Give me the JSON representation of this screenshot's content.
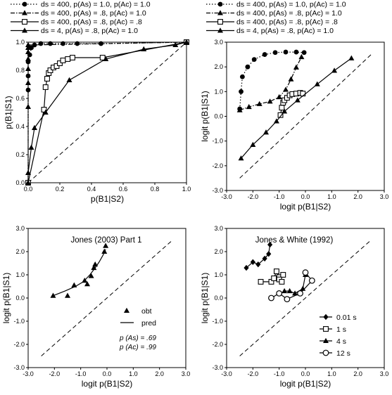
{
  "chart_data": [
    {
      "id": "p1",
      "type": "line",
      "xlabel": "p(B1|S2)",
      "ylabel": "p(B1|S1)",
      "xlim": [
        0,
        1
      ],
      "ylim": [
        0,
        1
      ],
      "xticks": [
        "0.0",
        "0.2",
        "0.4",
        "0.6",
        "0.8",
        "1.0"
      ],
      "yticks": [
        "0.0",
        "0.2",
        "0.4",
        "0.6",
        "0.8",
        "1.0"
      ],
      "legend": "top",
      "diagonal": true,
      "series": [
        {
          "name": "ds = 400, p(As) = 1.0, p(Ac) = 1.0",
          "marker": "circle",
          "line": "dotted",
          "x": [
            0.0,
            0.0,
            0.0,
            0.0,
            0.01,
            0.02,
            0.04,
            0.08,
            0.14,
            0.22,
            0.31,
            0.46,
            1.0
          ],
          "y": [
            0.0,
            0.66,
            0.76,
            0.86,
            0.91,
            0.96,
            0.98,
            0.99,
            0.99,
            0.99,
            0.99,
            0.99,
            1.0
          ]
        },
        {
          "name": "ds = 400, p(As) = .8, p(Ac) = 1.0",
          "marker": "triangle",
          "line": "dashdot",
          "x": [
            0.0,
            0.0,
            0.0,
            0.0,
            0.0,
            0.0,
            0.0,
            0.0,
            1.0
          ],
          "y": [
            0.0,
            0.54,
            0.71,
            0.81,
            0.88,
            0.93,
            0.96,
            0.98,
            1.0
          ]
        },
        {
          "name": "ds = 400, p(As) = .8, p(Ac) = .8",
          "marker": "square",
          "line": "solid",
          "x": [
            0.0,
            0.1,
            0.11,
            0.12,
            0.13,
            0.14,
            0.16,
            0.18,
            0.2,
            0.22,
            0.25,
            0.28,
            0.47,
            1.0
          ],
          "y": [
            0.0,
            0.52,
            0.68,
            0.74,
            0.78,
            0.8,
            0.82,
            0.83,
            0.85,
            0.87,
            0.88,
            0.89,
            0.89,
            1.0
          ]
        },
        {
          "name": "ds = 4, p(As) = .8, p(Ac) = 1.0",
          "marker": "triangle",
          "line": "solid",
          "x": [
            0.0,
            0.0,
            0.02,
            0.04,
            0.11,
            0.26,
            0.49,
            0.73,
            0.93,
            1.0
          ],
          "y": [
            0.0,
            0.07,
            0.25,
            0.39,
            0.5,
            0.73,
            0.88,
            0.95,
            0.98,
            1.0
          ]
        }
      ]
    },
    {
      "id": "p2",
      "type": "line",
      "xlabel": "logit p(B1|S2)",
      "ylabel": "logit p(B1|S1)",
      "xlim": [
        -3,
        3
      ],
      "ylim": [
        -3,
        3
      ],
      "xticks": [
        "-3.0",
        "-2.0",
        "-1.0",
        "0.0",
        "1.0",
        "2.0",
        "3.0"
      ],
      "yticks": [
        "-3.0",
        "-2.0",
        "-1.0",
        "0.0",
        "1.0",
        "2.0",
        "3.0"
      ],
      "legend": "top",
      "diagonal": true,
      "series": [
        {
          "name": "ds = 400, p(As) = 1.0, p(Ac) = 1.0",
          "marker": "circle",
          "line": "dotted",
          "x": [
            -2.5,
            -2.45,
            -2.4,
            -2.2,
            -1.95,
            -1.55,
            -1.15,
            -0.75,
            -0.35,
            -0.05
          ],
          "y": [
            0.3,
            1.0,
            1.6,
            2.0,
            2.3,
            2.5,
            2.58,
            2.6,
            2.6,
            2.58
          ]
        },
        {
          "name": "ds = 400, p(As) = .8, p(Ac) = 1.0",
          "marker": "triangle",
          "line": "dashdot",
          "x": [
            -2.5,
            -2.15,
            -1.75,
            -1.35,
            -1.0,
            -0.75,
            -0.55,
            -0.35,
            -0.15
          ],
          "y": [
            0.25,
            0.38,
            0.5,
            0.6,
            0.78,
            1.08,
            1.5,
            1.98,
            2.4
          ]
        },
        {
          "name": "ds = 400, p(As) = .8, p(Ac) = .8",
          "marker": "square",
          "line": "solid",
          "x": [
            -0.95,
            -0.9,
            -0.85,
            -0.8,
            -0.7,
            -0.6,
            -0.5,
            -0.35,
            -0.2,
            -0.1
          ],
          "y": [
            0.05,
            0.35,
            0.55,
            0.65,
            0.75,
            0.85,
            0.9,
            0.92,
            0.95,
            0.92
          ]
        },
        {
          "name": "ds = 4, p(As) = .8, p(Ac) = 1.0",
          "marker": "triangle",
          "line": "solid",
          "x": [
            -2.45,
            -2.0,
            -1.5,
            -1.1,
            -0.8,
            -0.3,
            0.45,
            1.1,
            1.75
          ],
          "y": [
            -1.7,
            -1.15,
            -0.65,
            -0.2,
            0.2,
            0.65,
            1.3,
            1.85,
            2.35
          ]
        }
      ]
    },
    {
      "id": "p3",
      "type": "scatter",
      "title": "Jones (2003) Part 1",
      "xlabel": "logit p(B1|S2)",
      "ylabel": "logit p(B1|S1)",
      "xlim": [
        -3,
        3
      ],
      "ylim": [
        -3,
        3
      ],
      "xticks": [
        "-3.0",
        "-2.0",
        "-1.0",
        "0.0",
        "1.0",
        "2.0",
        "3.0"
      ],
      "yticks": [
        "-3.0",
        "-2.0",
        "-1.0",
        "0.0",
        "1.0",
        "2.0",
        "3.0"
      ],
      "diagonal": true,
      "series": [
        {
          "name": "obt",
          "marker": "triangle",
          "line": "none",
          "x": [
            -2.05,
            -1.5,
            -1.25,
            -0.85,
            -0.75,
            -0.6,
            -0.5,
            -0.45,
            -0.1,
            -0.05
          ],
          "y": [
            0.1,
            0.1,
            0.55,
            0.75,
            0.6,
            0.95,
            1.3,
            1.45,
            2.0,
            2.25
          ]
        },
        {
          "name": "pred",
          "marker": "none",
          "line": "solid",
          "x": [
            -2.05,
            -1.6,
            -1.2,
            -0.9,
            -0.65,
            -0.45,
            -0.3,
            -0.15,
            -0.05
          ],
          "y": [
            0.1,
            0.3,
            0.5,
            0.7,
            1.0,
            1.3,
            1.55,
            1.85,
            2.1
          ]
        }
      ],
      "annotations": [
        "p (As) = .69",
        "p (Ac) = .99"
      ]
    },
    {
      "id": "p4",
      "type": "line",
      "title": "Jones & White (1992)",
      "xlabel": "logit p(B1|S2)",
      "ylabel": "logit p(B1|S1)",
      "xlim": [
        -3,
        3
      ],
      "ylim": [
        -3,
        3
      ],
      "xticks": [
        "-3.0",
        "-2.0",
        "-1.0",
        "0.0",
        "1.0",
        "2.0",
        "3.0"
      ],
      "yticks": [
        "-3.0",
        "-2.0",
        "-1.0",
        "0.0",
        "1.0",
        "2.0",
        "3.0"
      ],
      "legend": "bottom-right",
      "diagonal": true,
      "series": [
        {
          "name": "0.01 s",
          "marker": "diamond",
          "line": "solid",
          "x": [
            -2.25,
            -2.0,
            -1.8,
            -1.55,
            -1.4,
            -1.35
          ],
          "y": [
            1.3,
            1.55,
            1.45,
            1.7,
            1.9,
            2.3
          ]
        },
        {
          "name": "1 s",
          "marker": "square",
          "line": "solid",
          "x": [
            -1.7,
            -1.3,
            -1.2,
            -1.1,
            -1.0,
            -0.85,
            -1.0,
            -0.9
          ],
          "y": [
            0.7,
            0.7,
            0.85,
            1.15,
            0.9,
            1.0,
            0.8,
            0.7
          ]
        },
        {
          "name": "4 s",
          "marker": "triangle",
          "line": "solid",
          "x": [
            -0.8,
            -0.6,
            -0.4,
            -0.1,
            0.0
          ],
          "y": [
            0.3,
            0.3,
            0.2,
            0.4,
            1.0
          ]
        },
        {
          "name": "12 s",
          "marker": "circle-open",
          "line": "solid",
          "x": [
            -1.3,
            -1.0,
            -0.7,
            -0.2,
            0.25,
            0.0
          ],
          "y": [
            0.0,
            0.2,
            -0.05,
            0.2,
            0.75,
            1.1
          ]
        }
      ]
    }
  ]
}
